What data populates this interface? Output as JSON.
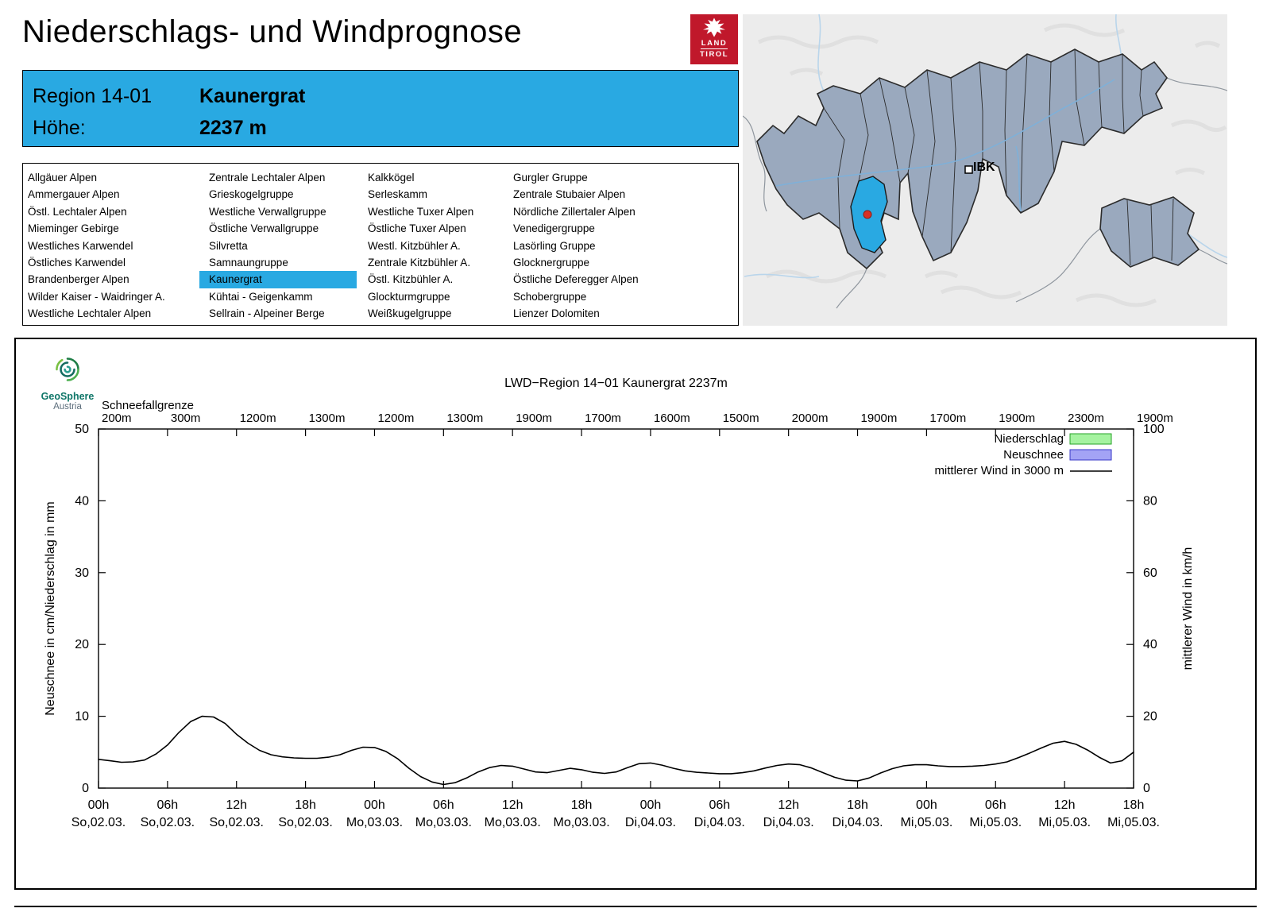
{
  "page": {
    "title": "Niederschlags- und Windprognose"
  },
  "logo_tirol": {
    "line1": "LAND",
    "line2": "TIROL",
    "red": "#C0182B"
  },
  "region_info": {
    "region_label": "Region 14-01",
    "region_name": "Kaunergrat",
    "height_label": "Höhe:",
    "height_value": "2237 m",
    "accent_color": "#29A9E2"
  },
  "region_list": {
    "selected": "Kaunergrat",
    "columns": [
      [
        "Allgäuer Alpen",
        "Ammergauer Alpen",
        "Östl. Lechtaler Alpen",
        "Mieminger Gebirge",
        "Westliches Karwendel",
        "Östliches Karwendel",
        "Brandenberger Alpen",
        "Wilder Kaiser - Waidringer A.",
        "Westliche Lechtaler Alpen"
      ],
      [
        "Zentrale Lechtaler Alpen",
        "Grieskogelgruppe",
        "Westliche Verwallgruppe",
        "Östliche Verwallgruppe",
        "Silvretta",
        "Samnaungruppe",
        "Kaunergrat",
        "Kühtai - Geigenkamm",
        "Sellrain - Alpeiner Berge"
      ],
      [
        "Kalkkögel",
        "Serleskamm",
        "Westliche Tuxer Alpen",
        "Östliche Tuxer Alpen",
        "Westl. Kitzbühler A.",
        "Zentrale Kitzbühler A.",
        "Östl. Kitzbühler A.",
        "Glockturmgruppe",
        "Weißkugelgruppe"
      ],
      [
        "Gurgler Gruppe",
        "Zentrale Stubaier Alpen",
        "Nördliche Zillertaler Alpen",
        "Venedigergruppe",
        "Lasörling Gruppe",
        "Glocknergruppe",
        "Östliche Deferegger Alpen",
        "Schobergruppe",
        "Lienzer Dolomiten"
      ]
    ]
  },
  "map": {
    "city_label": "IBK",
    "highlight_color": "#29A9E2",
    "marker_color": "#D93025",
    "region_fill": "#9AA9BE"
  },
  "geosphere": {
    "name": "GeoSphere",
    "country": "Austria"
  },
  "chart_data": {
    "type": "line",
    "title": "LWD−Region 14−01 Kaunergrat 2237m",
    "snowline": {
      "label": "Schneefallgrenze",
      "values": [
        "200m",
        "300m",
        "1200m",
        "1300m",
        "1200m",
        "1300m",
        "1900m",
        "1700m",
        "1600m",
        "1500m",
        "2000m",
        "1900m",
        "1700m",
        "1900m",
        "2300m",
        "1900m"
      ]
    },
    "axes": {
      "ylabel_left": "Neuschnee in cm/Niederschlag in mm",
      "ylabel_right": "mittlerer Wind in km/h",
      "ylim_left": [
        0,
        50
      ],
      "ylim_right": [
        0,
        100
      ],
      "yticks_left": [
        0,
        10,
        20,
        30,
        40,
        50
      ],
      "yticks_right": [
        0,
        20,
        40,
        60,
        80,
        100
      ],
      "x_ticks": [
        {
          "time": "00h",
          "date": "So,02.03."
        },
        {
          "time": "06h",
          "date": "So,02.03."
        },
        {
          "time": "12h",
          "date": "So,02.03."
        },
        {
          "time": "18h",
          "date": "So,02.03."
        },
        {
          "time": "00h",
          "date": "Mo,03.03."
        },
        {
          "time": "06h",
          "date": "Mo,03.03."
        },
        {
          "time": "12h",
          "date": "Mo,03.03."
        },
        {
          "time": "18h",
          "date": "Mo,03.03."
        },
        {
          "time": "00h",
          "date": "Di,04.03."
        },
        {
          "time": "06h",
          "date": "Di,04.03."
        },
        {
          "time": "12h",
          "date": "Di,04.03."
        },
        {
          "time": "18h",
          "date": "Di,04.03."
        },
        {
          "time": "00h",
          "date": "Mi,05.03."
        },
        {
          "time": "06h",
          "date": "Mi,05.03."
        },
        {
          "time": "12h",
          "date": "Mi,05.03."
        },
        {
          "time": "18h",
          "date": "Mi,05.03."
        }
      ]
    },
    "x_span_hours": 90,
    "legend": [
      {
        "label": "Niederschlag",
        "swatch": "box",
        "fill": "#A5F3A0",
        "stroke": "#27A327"
      },
      {
        "label": "Neuschnee",
        "swatch": "box",
        "fill": "#A3A3F5",
        "stroke": "#3A3AC8"
      },
      {
        "label": "mittlerer Wind in 3000 m",
        "swatch": "line",
        "stroke": "#000000"
      }
    ],
    "series": [
      {
        "name": "Niederschlag",
        "unit": "mm",
        "values": []
      },
      {
        "name": "Neuschnee",
        "unit": "cm",
        "values": []
      },
      {
        "name": "mittlerer Wind in 3000 m",
        "unit": "km/h",
        "axis": "right",
        "x_start_hour": 0,
        "x_step_hours": 1,
        "values": [
          8.0,
          7.6,
          7.2,
          7.3,
          7.8,
          9.5,
          12.0,
          15.5,
          18.5,
          20.0,
          19.8,
          18.0,
          15.0,
          12.5,
          10.5,
          9.3,
          8.7,
          8.4,
          8.3,
          8.3,
          8.6,
          9.3,
          10.5,
          11.4,
          11.3,
          10.2,
          8.2,
          5.5,
          3.2,
          1.7,
          1.0,
          1.5,
          2.8,
          4.5,
          5.7,
          6.3,
          6.1,
          5.3,
          4.5,
          4.3,
          4.9,
          5.5,
          5.1,
          4.4,
          4.1,
          4.5,
          5.7,
          6.8,
          7.0,
          6.4,
          5.5,
          4.8,
          4.4,
          4.2,
          4.0,
          4.0,
          4.3,
          4.8,
          5.6,
          6.3,
          6.7,
          6.5,
          5.6,
          4.3,
          3.0,
          2.2,
          2.0,
          2.8,
          4.2,
          5.4,
          6.2,
          6.5,
          6.5,
          6.2,
          6.0,
          6.0,
          6.1,
          6.3,
          6.7,
          7.3,
          8.5,
          9.8,
          11.2,
          12.5,
          13.0,
          12.2,
          10.6,
          8.6,
          7.0,
          7.6,
          10.0
        ]
      }
    ]
  }
}
